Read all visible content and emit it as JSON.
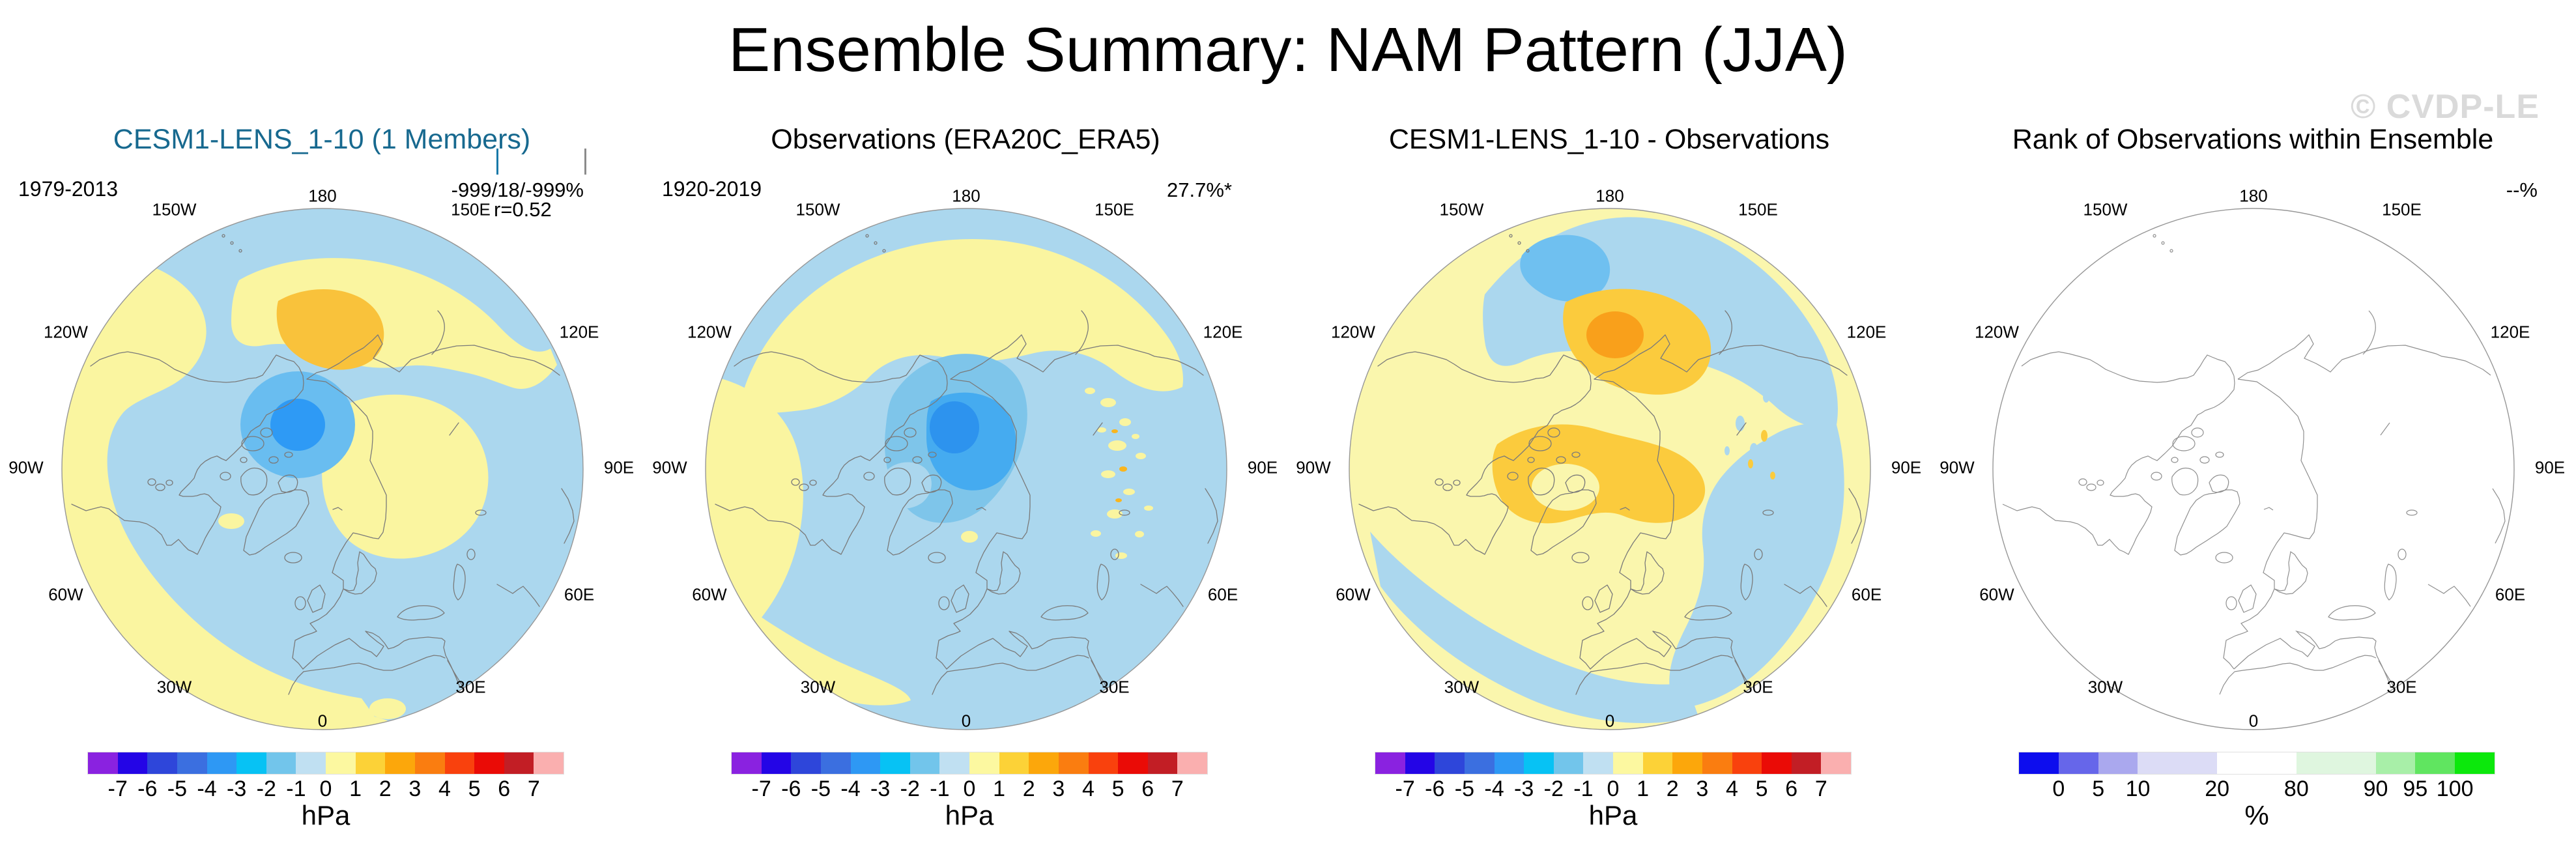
{
  "figure": {
    "title": "Ensemble Summary: NAM Pattern (JJA)",
    "watermark": "© CVDP-LE"
  },
  "lon_labels": [
    {
      "label": "180",
      "angle": 180
    },
    {
      "label": "150E",
      "angle": 150
    },
    {
      "label": "120E",
      "angle": 120
    },
    {
      "label": "90E",
      "angle": 90
    },
    {
      "label": "60E",
      "angle": 60
    },
    {
      "label": "30E",
      "angle": 30
    },
    {
      "label": "0",
      "angle": 0
    },
    {
      "label": "30W",
      "angle": -30
    },
    {
      "label": "60W",
      "angle": -60
    },
    {
      "label": "90W",
      "angle": -90
    },
    {
      "label": "120W",
      "angle": -120
    },
    {
      "label": "150W",
      "angle": -150
    }
  ],
  "panels": [
    {
      "title": "CESM1-LENS_1-10 (1 Members)",
      "title_color": "#17698F",
      "period": "1979-2013",
      "stats_line1": "-999/18/-999%",
      "stats_line2": "r=0.52",
      "colorbar": "hpa",
      "member_ticks": [
        {
          "color": "#1879A8"
        },
        {
          "color": "#8C8C8C"
        }
      ]
    },
    {
      "title": "Observations (ERA20C_ERA5)",
      "title_color": "#000000",
      "period": "1920-2019",
      "stats_line1": "27.7%*",
      "colorbar": "hpa",
      "member_ticks": []
    },
    {
      "title": "CESM1-LENS_1-10 - Observations",
      "title_color": "#000000",
      "colorbar": "hpa",
      "member_ticks": []
    },
    {
      "title": "Rank of Observations within Ensemble",
      "title_color": "#000000",
      "stats_line1": "--%",
      "colorbar": "pct",
      "member_ticks": []
    }
  ],
  "colorbars": {
    "hpa": {
      "unit": "hPa",
      "colors": [
        "#8A22E0",
        "#2405E6",
        "#2E46DA",
        "#3B6FE0",
        "#2E98F4",
        "#07C2F4",
        "#72C5EB",
        "#C0E0F2",
        "#FCF8A0",
        "#FCD237",
        "#FCA70B",
        "#FA7D10",
        "#F9410D",
        "#EA0B06",
        "#C21E25",
        "#FAAFAF"
      ],
      "labels": [
        "-7",
        "-6",
        "-5",
        "-4",
        "-3",
        "-2",
        "-1",
        "0",
        "1",
        "2",
        "3",
        "4",
        "5",
        "6",
        "7"
      ]
    },
    "pct": {
      "unit": "%",
      "colors": [
        "#0D0DEE",
        "#6666EA",
        "#AAA8EE",
        "#DCDCF6",
        "#FFFFFF",
        "#DFF6DF",
        "#A8EFA8",
        "#60E560",
        "#0CE80C"
      ],
      "widths": [
        1,
        1,
        1,
        2,
        2,
        2,
        1,
        1,
        1
      ],
      "labels": [
        "0",
        "5",
        "10",
        "20",
        "80",
        "90",
        "95",
        "100"
      ]
    }
  },
  "chart_data": {
    "type": "heatmap",
    "subtype": "polar_stereographic_filled_contour_maps",
    "projection": {
      "center": "North Pole",
      "outer_latitude": "20N",
      "top_longitude": "180",
      "bottom_longitude": "0",
      "longitude_ticks": [
        "180",
        "150E",
        "120E",
        "90E",
        "60E",
        "30E",
        "0",
        "30W",
        "60W",
        "90W",
        "120W",
        "150W"
      ]
    },
    "panels": [
      {
        "title": "CESM1-LENS_1-10 (1 Members)",
        "period": "1979-2013",
        "annotations": [
          "-999/18/-999%",
          "r=0.52"
        ],
        "units": "hPa",
        "levels": [
          -7,
          -6,
          -5,
          -4,
          -3,
          -2,
          -1,
          0,
          1,
          2,
          3,
          4,
          5,
          6,
          7
        ],
        "summary": "Negative SLP anomaly bullseye (-2 to -4 hPa) just off the pole toward 180; 0 to -1 hPa over most of the hemisphere; +1 hPa band over western/central North America wrapping to the North Atlantic and central Eurasia; +2 hPa maximum over north-central Siberia near 180."
      },
      {
        "title": "Observations (ERA20C_ERA5)",
        "period": "1920-2019",
        "annotations": [
          "27.7%*"
        ],
        "units": "hPa",
        "levels": [
          -7,
          -6,
          -5,
          -4,
          -3,
          -2,
          -1,
          0,
          1,
          2,
          3,
          4,
          5,
          6,
          7
        ],
        "summary": "Deep negative center (-2 to -4 hPa) over the Arctic near the pole/Greenland; 0 to -1 hPa over mid-latitudes; +1 hPa over the North Pacific rim, North America and the subtropical Atlantic; speckled small +1/-1 features over Asia."
      },
      {
        "title": "CESM1-LENS_1-10 - Observations",
        "annotations": [],
        "units": "hPa",
        "levels": [
          -7,
          -6,
          -5,
          -4,
          -3,
          -2,
          -1,
          0,
          1,
          2,
          3,
          4,
          5,
          6,
          7
        ],
        "summary": "Mostly 0 to +1 hPa differences; +1 to +2 hPa over north-central Siberia (local +2 maximum) and over the Canadian Arctic/Greenland ring; -1 hPa lobe poleward of 180; 0 to -1 hPa over the Pacific, East Asia and Atlantic rims."
      },
      {
        "title": "Rank of Observations within Ensemble",
        "annotations": [
          "--%"
        ],
        "units": "%",
        "levels": [
          0,
          5,
          10,
          20,
          80,
          90,
          95,
          100
        ],
        "summary": "Blank (no rank data): white map with coastlines only."
      }
    ]
  }
}
